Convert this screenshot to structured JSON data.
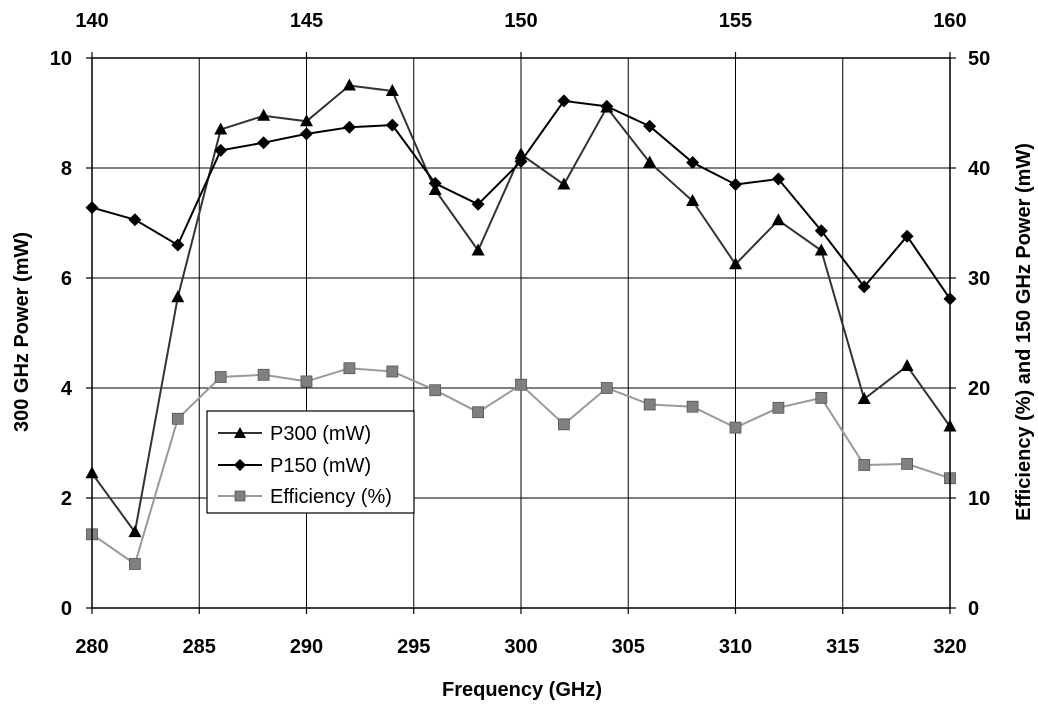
{
  "chart_data": {
    "type": "line",
    "xlabel": "Frequency (GHz)",
    "ylabel": "300 GHz Power (mW)",
    "y2label": "Efficiency (%) and 150 GHz Power (mW)",
    "x": [
      280,
      282,
      284,
      286,
      288,
      290,
      292,
      294,
      296,
      298,
      300,
      302,
      304,
      306,
      308,
      310,
      312,
      314,
      316,
      318,
      320
    ],
    "xlim": [
      280,
      320
    ],
    "xticks": [
      "280",
      "285",
      "290",
      "295",
      "300",
      "305",
      "310",
      "315",
      "320"
    ],
    "x2lim": [
      140,
      160
    ],
    "x2ticks": [
      "140",
      "145",
      "150",
      "155",
      "160"
    ],
    "ylim": [
      0,
      10
    ],
    "yticks": [
      "0",
      "2",
      "4",
      "6",
      "8",
      "10"
    ],
    "y2lim": [
      0,
      50
    ],
    "y2ticks": [
      "0",
      "10",
      "20",
      "30",
      "40",
      "50"
    ],
    "grid": true,
    "legend_position": "lower-left",
    "series": [
      {
        "name": "P300 (mW)",
        "axis": "left",
        "marker": "triangle",
        "color": "#000000",
        "line_color": "#333333",
        "values": [
          2.45,
          1.38,
          5.65,
          8.7,
          8.95,
          8.85,
          9.5,
          9.4,
          7.6,
          6.5,
          8.25,
          7.7,
          9.1,
          8.1,
          7.4,
          6.25,
          7.05,
          6.5,
          3.8,
          4.4,
          3.3
        ]
      },
      {
        "name": "P150 (mW)",
        "axis": "right",
        "marker": "diamond",
        "color": "#000000",
        "line_color": "#000000",
        "values": [
          36.4,
          35.3,
          33.0,
          41.6,
          42.3,
          43.1,
          43.7,
          43.9,
          38.6,
          36.7,
          40.6,
          46.1,
          45.6,
          43.8,
          40.5,
          38.5,
          39.0,
          34.3,
          29.2,
          33.8,
          28.1
        ]
      },
      {
        "name": "Efficiency (%)",
        "axis": "right",
        "marker": "square",
        "color": "#808080",
        "line_color": "#9a9a9a",
        "values": [
          6.7,
          4.0,
          17.2,
          21.0,
          21.2,
          20.6,
          21.8,
          21.5,
          19.8,
          17.8,
          20.3,
          16.7,
          20.0,
          18.5,
          18.3,
          16.4,
          18.2,
          19.1,
          13.0,
          13.1,
          11.8
        ]
      }
    ]
  }
}
